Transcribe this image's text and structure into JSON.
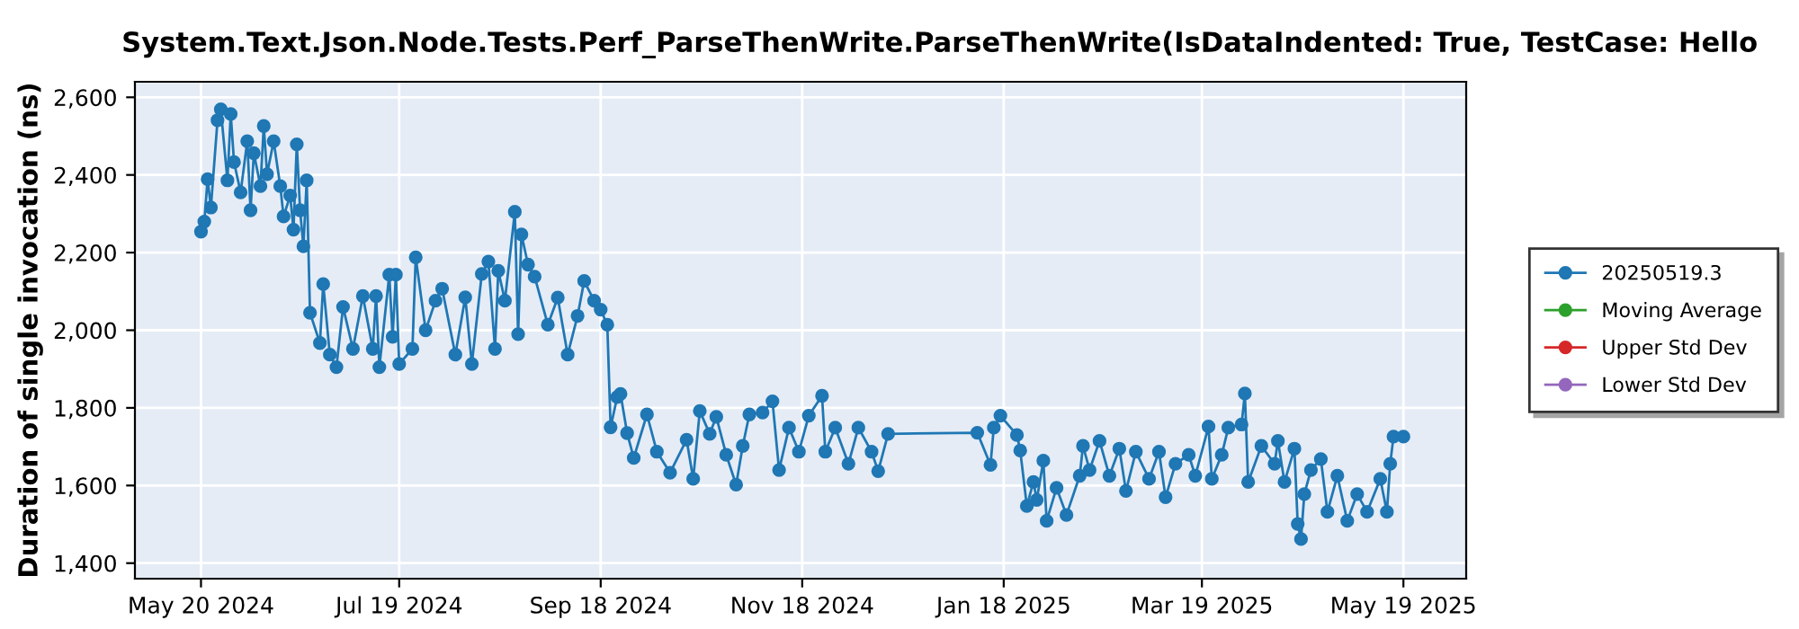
{
  "chart_data": {
    "type": "line",
    "title": "System.Text.Json.Node.Tests.Perf_ParseThenWrite.ParseThenWrite(IsDataIndented: True, TestCase: Hello",
    "ylabel": "Duration of single invocation (ns)",
    "xlim": [
      "2024-04-30",
      "2025-06-07"
    ],
    "xticks": [
      {
        "value": "2024-05-20",
        "label": "May 20 2024"
      },
      {
        "value": "2024-07-19",
        "label": "Jul 19 2024"
      },
      {
        "value": "2024-09-18",
        "label": "Sep 18 2024"
      },
      {
        "value": "2024-11-18",
        "label": "Nov 18 2024"
      },
      {
        "value": "2025-01-18",
        "label": "Jan 18 2025"
      },
      {
        "value": "2025-03-19",
        "label": "Mar 19 2025"
      },
      {
        "value": "2025-05-19",
        "label": "May 19 2025"
      }
    ],
    "ylim": [
      1360,
      2640
    ],
    "yticks": [
      {
        "value": 1400,
        "label": "1,400"
      },
      {
        "value": 1600,
        "label": "1,600"
      },
      {
        "value": 1800,
        "label": "1,800"
      },
      {
        "value": 2000,
        "label": "2,000"
      },
      {
        "value": 2200,
        "label": "2,200"
      },
      {
        "value": 2400,
        "label": "2,400"
      },
      {
        "value": 2600,
        "label": "2,600"
      }
    ],
    "grid": true,
    "legend": "right",
    "marker": "circle",
    "line_style": "solid",
    "series": [
      {
        "name": "20250519.3",
        "color": "#1f77b4",
        "x": [
          "2024-05-20",
          "2024-05-21",
          "2024-05-22",
          "2024-05-23",
          "2024-05-25",
          "2024-05-26",
          "2024-05-28",
          "2024-05-29",
          "2024-05-30",
          "2024-06-01",
          "2024-06-03",
          "2024-06-04",
          "2024-06-05",
          "2024-06-07",
          "2024-06-08",
          "2024-06-09",
          "2024-06-11",
          "2024-06-13",
          "2024-06-14",
          "2024-06-16",
          "2024-06-17",
          "2024-06-18",
          "2024-06-19",
          "2024-06-20",
          "2024-06-21",
          "2024-06-22",
          "2024-06-25",
          "2024-06-26",
          "2024-06-28",
          "2024-06-30",
          "2024-07-02",
          "2024-07-05",
          "2024-07-08",
          "2024-07-11",
          "2024-07-12",
          "2024-07-13",
          "2024-07-16",
          "2024-07-17",
          "2024-07-18",
          "2024-07-19",
          "2024-07-23",
          "2024-07-24",
          "2024-07-27",
          "2024-07-30",
          "2024-08-01",
          "2024-08-05",
          "2024-08-08",
          "2024-08-10",
          "2024-08-13",
          "2024-08-15",
          "2024-08-17",
          "2024-08-18",
          "2024-08-20",
          "2024-08-23",
          "2024-08-24",
          "2024-08-25",
          "2024-08-27",
          "2024-08-29",
          "2024-09-02",
          "2024-09-05",
          "2024-09-08",
          "2024-09-11",
          "2024-09-13",
          "2024-09-16",
          "2024-09-18",
          "2024-09-20",
          "2024-09-21",
          "2024-09-23",
          "2024-09-24",
          "2024-09-26",
          "2024-09-28",
          "2024-10-02",
          "2024-10-05",
          "2024-10-09",
          "2024-10-14",
          "2024-10-16",
          "2024-10-18",
          "2024-10-21",
          "2024-10-23",
          "2024-10-26",
          "2024-10-29",
          "2024-10-31",
          "2024-11-02",
          "2024-11-06",
          "2024-11-09",
          "2024-11-11",
          "2024-11-14",
          "2024-11-17",
          "2024-11-20",
          "2024-11-24",
          "2024-11-25",
          "2024-11-28",
          "2024-12-02",
          "2024-12-05",
          "2024-12-09",
          "2024-12-11",
          "2024-12-14",
          "2025-01-10",
          "2025-01-14",
          "2025-01-15",
          "2025-01-17",
          "2025-01-22",
          "2025-01-23",
          "2025-01-25",
          "2025-01-27",
          "2025-01-28",
          "2025-01-30",
          "2025-01-31",
          "2025-02-03",
          "2025-02-06",
          "2025-02-10",
          "2025-02-11",
          "2025-02-13",
          "2025-02-16",
          "2025-02-19",
          "2025-02-22",
          "2025-02-24",
          "2025-02-27",
          "2025-03-03",
          "2025-03-06",
          "2025-03-08",
          "2025-03-11",
          "2025-03-15",
          "2025-03-17",
          "2025-03-21",
          "2025-03-22",
          "2025-03-25",
          "2025-03-27",
          "2025-03-31",
          "2025-04-01",
          "2025-04-02",
          "2025-04-06",
          "2025-04-10",
          "2025-04-11",
          "2025-04-13",
          "2025-04-16",
          "2025-04-17",
          "2025-04-18",
          "2025-04-19",
          "2025-04-21",
          "2025-04-24",
          "2025-04-26",
          "2025-04-29",
          "2025-05-02",
          "2025-05-05",
          "2025-05-08",
          "2025-05-12",
          "2025-05-14",
          "2025-05-15",
          "2025-05-16",
          "2025-05-19"
        ],
        "values": [
          2254,
          2280,
          2389,
          2316,
          2541,
          2569,
          2386,
          2557,
          2433,
          2355,
          2487,
          2309,
          2456,
          2371,
          2526,
          2402,
          2487,
          2371,
          2293,
          2347,
          2259,
          2479,
          2309,
          2216,
          2386,
          2045,
          1967,
          2119,
          1937,
          1905,
          2060,
          1952,
          2088,
          1952,
          2088,
          1905,
          2143,
          1983,
          2143,
          1913,
          1952,
          2188,
          2000,
          2076,
          2107,
          1937,
          2085,
          1913,
          2145,
          2177,
          1952,
          2153,
          2076,
          2305,
          1990,
          2247,
          2169,
          2138,
          2014,
          2084,
          1937,
          2037,
          2127,
          2076,
          2053,
          2014,
          1750,
          1828,
          1836,
          1735,
          1671,
          1783,
          1687,
          1633,
          1718,
          1617,
          1792,
          1733,
          1777,
          1679,
          1602,
          1702,
          1783,
          1788,
          1817,
          1640,
          1749,
          1687,
          1780,
          1831,
          1687,
          1749,
          1656,
          1749,
          1687,
          1637,
          1733,
          1736,
          1653,
          1749,
          1780,
          1730,
          1690,
          1547,
          1609,
          1563,
          1664,
          1509,
          1594,
          1524,
          1625,
          1702,
          1640,
          1715,
          1625,
          1695,
          1586,
          1687,
          1617,
          1687,
          1570,
          1656,
          1679,
          1625,
          1752,
          1617,
          1679,
          1749,
          1757,
          1837,
          1609,
          1702,
          1656,
          1715,
          1609,
          1695,
          1501,
          1462,
          1578,
          1640,
          1668,
          1532,
          1625,
          1509,
          1578,
          1532,
          1617,
          1532,
          1656,
          1726,
          1726
        ]
      },
      {
        "name": "Moving Average",
        "color": "#2ca02c"
      },
      {
        "name": "Upper Std Dev",
        "color": "#d62728"
      },
      {
        "name": "Lower Std Dev",
        "color": "#9467bd"
      }
    ]
  }
}
